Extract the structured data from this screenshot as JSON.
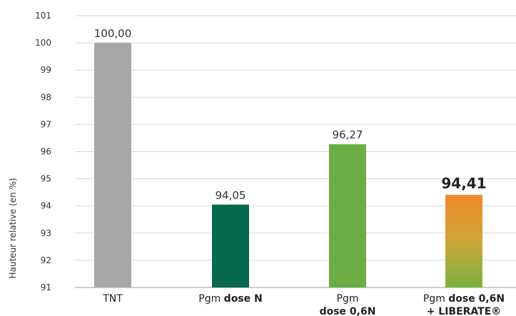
{
  "chart_data": {
    "type": "bar",
    "ylabel": "Hauteur relative (en %)",
    "ylim": [
      91,
      101
    ],
    "yticks": [
      91,
      92,
      93,
      94,
      95,
      96,
      97,
      98,
      99,
      100,
      101
    ],
    "grid": true,
    "categories": [
      {
        "lines": [
          [
            {
              "text": "TNT",
              "bold": false
            }
          ]
        ]
      },
      {
        "lines": [
          [
            {
              "text": "Pgm ",
              "bold": false
            },
            {
              "text": "dose N",
              "bold": true
            }
          ]
        ]
      },
      {
        "lines": [
          [
            {
              "text": "Pgm",
              "bold": false
            }
          ],
          [
            {
              "text": "dose 0,6N",
              "bold": true
            }
          ]
        ]
      },
      {
        "lines": [
          [
            {
              "text": "Pgm ",
              "bold": false
            },
            {
              "text": "dose 0,6N",
              "bold": true
            }
          ],
          [
            {
              "text": "+ LIBERATE®",
              "bold": true
            }
          ]
        ]
      }
    ],
    "values": [
      100.0,
      94.05,
      96.27,
      94.41
    ],
    "value_labels": [
      "100,00",
      "94,05",
      "96,27",
      "94,41"
    ],
    "highlight_label": [
      false,
      false,
      false,
      true
    ],
    "colors": [
      "#a7a7a7",
      "#076a4f",
      "#6aad45",
      "gradient-orange-green"
    ]
  }
}
